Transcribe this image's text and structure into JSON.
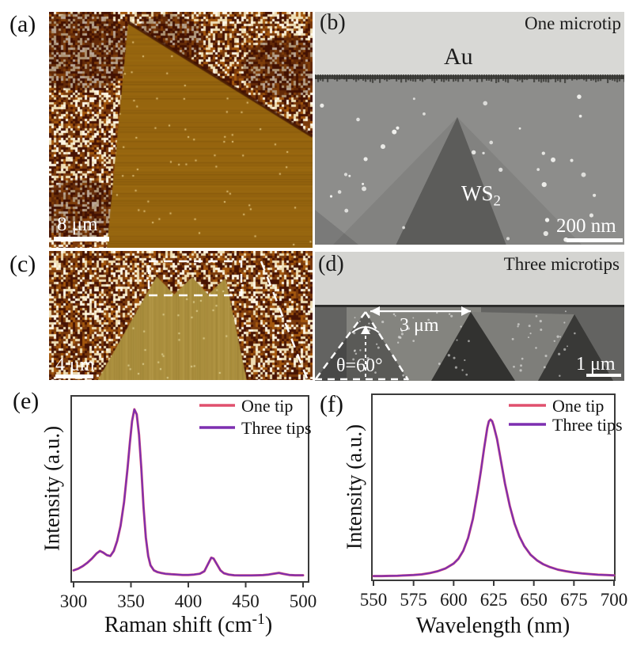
{
  "panels": {
    "a": {
      "label": "(a)",
      "scalebar_text": "8 μm"
    },
    "b": {
      "label": "(b)",
      "title": "One microtip",
      "metal_label": "Au",
      "material": "WS",
      "material_subscript": "2",
      "scalebar_text": "200 nm"
    },
    "c": {
      "label": "(c)",
      "scalebar_text": "4 μm"
    },
    "d": {
      "label": "(d)",
      "title": "Three microtips",
      "span_label": "3 μm",
      "angle_label": "θ=60°",
      "scalebar_text": "1 μm"
    },
    "e": {
      "label": "(e)"
    },
    "f": {
      "label": "(f)"
    }
  },
  "colors": {
    "one_tip": "#e0506e",
    "three_tips": "#7d2fb0",
    "afm_flake": "#96650f",
    "afm_c_flake": "#ab8f3e",
    "sem_au_band": "#d8d8d5",
    "sem_body": "#8d8d8b",
    "sem_dark_triangle": "#5c5c5a",
    "annotation_white": "#ffffff"
  },
  "chart_data": [
    {
      "panel": "e",
      "type": "line",
      "title": "",
      "xlabel": "Raman shift (cm^-1)",
      "ylabel": "Intensity (a.u.)",
      "xlim": [
        300,
        500
      ],
      "xticks": [
        300,
        350,
        400,
        450,
        500
      ],
      "yticks": [],
      "grid": false,
      "legend_position": "top-right",
      "legend": [
        "One tip",
        "Three tips"
      ],
      "series": [
        {
          "name": "One tip",
          "color": "#e0506e",
          "x": [
            300,
            304,
            308,
            312,
            316,
            320,
            323,
            326,
            329,
            332,
            335,
            338,
            341,
            344,
            347,
            349,
            351,
            353,
            355,
            357,
            359,
            361,
            363,
            365,
            367,
            370,
            373,
            376,
            380,
            385,
            390,
            395,
            400,
            405,
            410,
            414,
            417,
            420,
            422,
            425,
            428,
            431,
            435,
            440,
            445,
            450,
            455,
            460,
            465,
            470,
            475,
            479,
            483,
            488,
            493,
            500
          ],
          "y": [
            0.045,
            0.055,
            0.07,
            0.09,
            0.115,
            0.145,
            0.16,
            0.15,
            0.135,
            0.13,
            0.16,
            0.22,
            0.31,
            0.45,
            0.65,
            0.8,
            0.93,
            1.0,
            0.97,
            0.85,
            0.65,
            0.42,
            0.24,
            0.13,
            0.075,
            0.045,
            0.035,
            0.03,
            0.025,
            0.022,
            0.02,
            0.018,
            0.018,
            0.02,
            0.025,
            0.04,
            0.08,
            0.12,
            0.115,
            0.08,
            0.045,
            0.028,
            0.02,
            0.016,
            0.015,
            0.015,
            0.015,
            0.016,
            0.017,
            0.02,
            0.026,
            0.03,
            0.024,
            0.018,
            0.016,
            0.016
          ]
        },
        {
          "name": "Three tips",
          "color": "#7d2fb0",
          "x": [
            300,
            304,
            308,
            312,
            316,
            320,
            323,
            326,
            329,
            332,
            335,
            338,
            341,
            344,
            347,
            349,
            351,
            353,
            355,
            357,
            359,
            361,
            363,
            365,
            367,
            370,
            373,
            376,
            380,
            385,
            390,
            395,
            400,
            405,
            410,
            414,
            417,
            420,
            422,
            425,
            428,
            431,
            435,
            440,
            445,
            450,
            455,
            460,
            465,
            470,
            475,
            479,
            483,
            488,
            493,
            500
          ],
          "y": [
            0.045,
            0.055,
            0.07,
            0.09,
            0.115,
            0.145,
            0.16,
            0.15,
            0.135,
            0.13,
            0.16,
            0.22,
            0.31,
            0.45,
            0.65,
            0.8,
            0.93,
            1.0,
            0.97,
            0.85,
            0.65,
            0.42,
            0.24,
            0.13,
            0.075,
            0.045,
            0.035,
            0.03,
            0.025,
            0.022,
            0.02,
            0.018,
            0.018,
            0.02,
            0.025,
            0.04,
            0.08,
            0.12,
            0.115,
            0.08,
            0.045,
            0.028,
            0.02,
            0.016,
            0.015,
            0.015,
            0.015,
            0.016,
            0.017,
            0.02,
            0.026,
            0.03,
            0.024,
            0.018,
            0.016,
            0.016
          ]
        }
      ],
      "annotations": {
        "main_peak_cm1": 353,
        "secondary_peak_cm1": 323,
        "third_peak_cm1": 420
      }
    },
    {
      "panel": "f",
      "type": "line",
      "title": "",
      "xlabel": "Wavelength (nm)",
      "ylabel": "Intensity (a.u.)",
      "xlim": [
        550,
        700
      ],
      "xticks": [
        550,
        575,
        600,
        625,
        650,
        675,
        700
      ],
      "yticks": [],
      "grid": false,
      "legend_position": "top-right",
      "legend": [
        "One tip",
        "Three tips"
      ],
      "series": [
        {
          "name": "One tip",
          "color": "#e0506e",
          "x": [
            550,
            555,
            560,
            565,
            570,
            575,
            580,
            585,
            590,
            595,
            600,
            603,
            606,
            609,
            612,
            615,
            617,
            619,
            621,
            622,
            623,
            624,
            625,
            627,
            629,
            632,
            635,
            638,
            641,
            644,
            648,
            652,
            656,
            660,
            665,
            670,
            675,
            680,
            685,
            690,
            695,
            700
          ],
          "y": [
            0.022,
            0.022,
            0.023,
            0.024,
            0.026,
            0.028,
            0.032,
            0.04,
            0.052,
            0.07,
            0.1,
            0.13,
            0.18,
            0.26,
            0.38,
            0.55,
            0.68,
            0.82,
            0.95,
            0.99,
            1.0,
            0.99,
            0.96,
            0.88,
            0.77,
            0.6,
            0.46,
            0.35,
            0.27,
            0.21,
            0.155,
            0.12,
            0.095,
            0.078,
            0.062,
            0.052,
            0.044,
            0.038,
            0.034,
            0.03,
            0.028,
            0.026
          ]
        },
        {
          "name": "Three tips",
          "color": "#7d2fb0",
          "x": [
            550,
            555,
            560,
            565,
            570,
            575,
            580,
            585,
            590,
            595,
            600,
            603,
            606,
            609,
            612,
            615,
            617,
            619,
            621,
            622,
            623,
            624,
            625,
            627,
            629,
            632,
            635,
            638,
            641,
            644,
            648,
            652,
            656,
            660,
            665,
            670,
            675,
            680,
            685,
            690,
            695,
            700
          ],
          "y": [
            0.022,
            0.022,
            0.023,
            0.024,
            0.026,
            0.028,
            0.032,
            0.04,
            0.052,
            0.07,
            0.1,
            0.13,
            0.18,
            0.26,
            0.38,
            0.55,
            0.68,
            0.82,
            0.95,
            0.99,
            1.0,
            0.99,
            0.96,
            0.88,
            0.77,
            0.6,
            0.46,
            0.35,
            0.27,
            0.21,
            0.155,
            0.12,
            0.095,
            0.078,
            0.062,
            0.052,
            0.044,
            0.038,
            0.034,
            0.03,
            0.028,
            0.026
          ]
        }
      ],
      "annotations": {
        "pl_peak_nm": 623
      }
    }
  ]
}
